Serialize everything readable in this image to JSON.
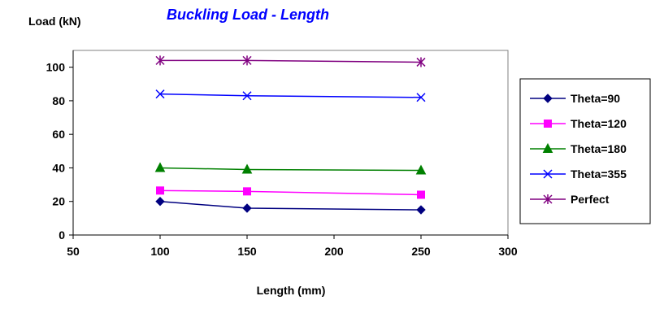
{
  "chart_data": {
    "type": "line",
    "title": "Buckling Load - Length",
    "xlabel": "Length (mm)",
    "ylabel": "Load (kN)",
    "xlim": [
      50,
      300
    ],
    "ylim": [
      0,
      110
    ],
    "xticks": [
      50,
      100,
      150,
      200,
      250,
      300
    ],
    "yticks": [
      0,
      20,
      40,
      60,
      80,
      100
    ],
    "grid": false,
    "legend_position": "right",
    "x": [
      100,
      150,
      250
    ],
    "series": [
      {
        "name": "Theta=90",
        "values": [
          20,
          16,
          15
        ],
        "color": "#000080",
        "marker": "diamond"
      },
      {
        "name": "Theta=120",
        "values": [
          26.5,
          26,
          24
        ],
        "color": "#ff00ff",
        "marker": "square"
      },
      {
        "name": "Theta=180",
        "values": [
          40,
          39,
          38.5
        ],
        "color": "#008000",
        "marker": "triangle"
      },
      {
        "name": "Theta=355",
        "values": [
          84,
          83,
          82
        ],
        "color": "#0000ff",
        "marker": "x"
      },
      {
        "name": "Perfect",
        "values": [
          104,
          104,
          103
        ],
        "color": "#800080",
        "marker": "star"
      }
    ]
  }
}
